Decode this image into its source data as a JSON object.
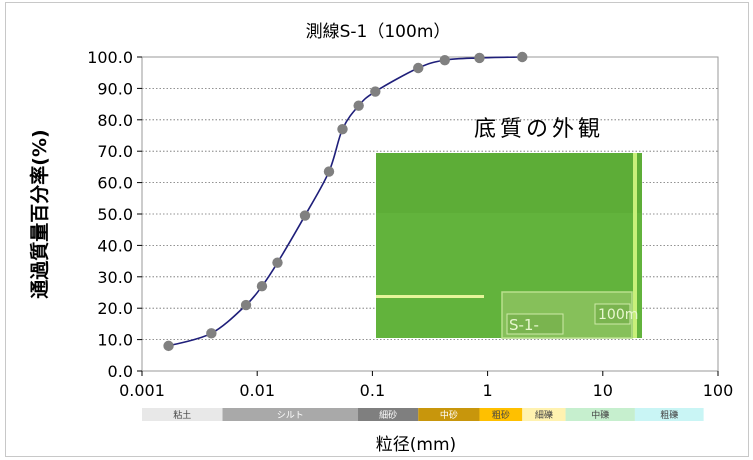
{
  "chart_data": {
    "type": "scatter",
    "title": "測線S-1（100m）",
    "xlabel": "粒径(mm)",
    "ylabel": "通過質量百分率(%)",
    "xscale": "log",
    "xlim": [
      0.001,
      100
    ],
    "ylim": [
      0,
      100
    ],
    "grid": "horizontal dotted",
    "x_tick_labels": [
      "0.001",
      "0.01",
      "0.1",
      "1",
      "10",
      "100"
    ],
    "x_ticks": [
      0.001,
      0.01,
      0.1,
      1,
      10,
      100
    ],
    "y_tick_labels": [
      "0.0",
      "10.0",
      "20.0",
      "30.0",
      "40.0",
      "50.0",
      "60.0",
      "70.0",
      "80.0",
      "90.0",
      "100.0"
    ],
    "y_ticks": [
      0,
      10,
      20,
      30,
      40,
      50,
      60,
      70,
      80,
      90,
      100
    ],
    "series": [
      {
        "line_color": "#1f1f7a",
        "marker_color": "#808080",
        "x": [
          0.0017,
          0.004,
          0.008,
          0.011,
          0.015,
          0.026,
          0.042,
          0.055,
          0.076,
          0.106,
          0.25,
          0.425,
          0.85,
          2.0
        ],
        "y": [
          8.0,
          12.0,
          21.0,
          27.0,
          34.5,
          49.5,
          63.5,
          77.0,
          84.5,
          89.0,
          96.5,
          99.0,
          99.7,
          100.0
        ]
      }
    ],
    "soil_classes": [
      {
        "label": "粘土",
        "from": 0.001,
        "to": 0.005,
        "color": "#e8e8e8",
        "text_color": "#444444"
      },
      {
        "label": "シルト",
        "from": 0.005,
        "to": 0.075,
        "color": "#a9a9a9",
        "text_color": "#ffffff"
      },
      {
        "label": "細砂",
        "from": 0.075,
        "to": 0.25,
        "color": "#7f7f7f",
        "text_color": "#ffffff"
      },
      {
        "label": "中砂",
        "from": 0.25,
        "to": 0.85,
        "color": "#c8960c",
        "text_color": "#ffffff"
      },
      {
        "label": "粗砂",
        "from": 0.85,
        "to": 2.0,
        "color": "#ffc000",
        "text_color": "#444444"
      },
      {
        "label": "細礫",
        "from": 2.0,
        "to": 4.75,
        "color": "#fff2b0",
        "text_color": "#444444"
      },
      {
        "label": "中礫",
        "from": 4.75,
        "to": 19.0,
        "color": "#c6efce",
        "text_color": "#444444"
      },
      {
        "label": "粗礫",
        "from": 19.0,
        "to": 75.0,
        "color": "#c9f5f5",
        "text_color": "#444444"
      }
    ]
  },
  "photo": {
    "caption": "底質の外観",
    "sign_text": "S-1-",
    "sign_distance": "100m",
    "water_color": "#62b33c"
  }
}
